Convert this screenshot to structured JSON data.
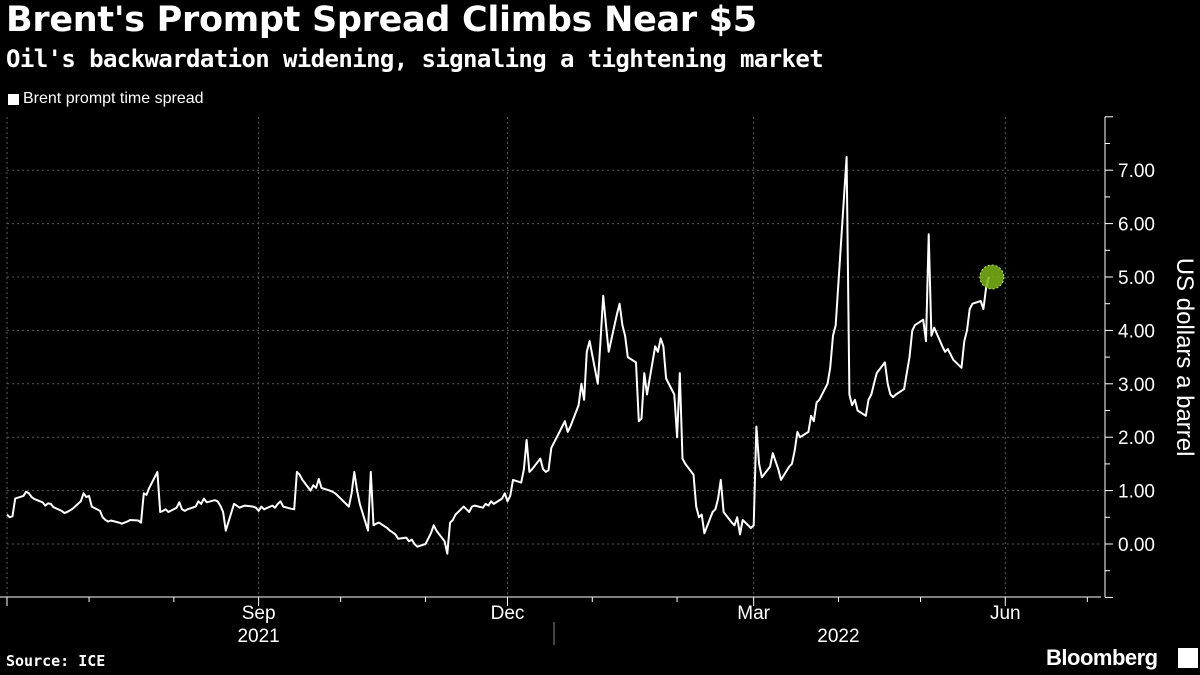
{
  "title": "Brent's Prompt Spread Climbs Near $5",
  "subtitle": "Oil's backwardation widening, signaling a tightening market",
  "source": "Source: ICE",
  "brand": "Bloomberg",
  "colors": {
    "background": "#000000",
    "line": "#ffffff",
    "grid": "#5a5a5a",
    "highlight": "#7cb518"
  },
  "chart_data": {
    "type": "line",
    "legend": [
      "Brent prompt time spread"
    ],
    "legend_position": "top-left",
    "ylabel": "US dollars a barrel",
    "ylim": [
      -1.0,
      8.0
    ],
    "y_ticks": [
      0,
      1,
      2,
      3,
      4,
      5,
      6,
      7
    ],
    "y_tick_labels": [
      "0.00",
      "1.00",
      "2.00",
      "3.00",
      "4.00",
      "5.00",
      "6.00",
      "7.00"
    ],
    "xlim": [
      "2021-06-15",
      "2022-07-20"
    ],
    "x_month_labels": [
      {
        "date": "2021-09-15",
        "label": "Sep"
      },
      {
        "date": "2021-12-15",
        "label": "Dec"
      },
      {
        "date": "2022-03-15",
        "label": "Mar"
      },
      {
        "date": "2022-06-15",
        "label": "Jun"
      }
    ],
    "x_year_labels": [
      {
        "date": "2021-09-15",
        "label": "2021"
      },
      {
        "date": "2022-04-15",
        "label": "2022"
      }
    ],
    "x_minor_ticks": [
      "2021-07-15",
      "2021-08-15",
      "2021-10-15",
      "2021-11-15",
      "2022-01-15",
      "2022-02-15",
      "2022-04-15",
      "2022-05-15",
      "2022-07-15"
    ],
    "x_grid_dates": [
      "2021-06-15",
      "2021-09-15",
      "2021-12-15",
      "2022-03-15",
      "2022-06-15"
    ],
    "grid": true,
    "series": [
      {
        "name": "Brent prompt time spread",
        "points": [
          [
            "2021-06-15",
            0.55
          ],
          [
            "2021-06-16",
            0.5
          ],
          [
            "2021-06-17",
            0.52
          ],
          [
            "2021-06-18",
            0.85
          ],
          [
            "2021-06-21",
            0.9
          ],
          [
            "2021-06-22",
            0.98
          ],
          [
            "2021-06-23",
            0.95
          ],
          [
            "2021-06-24",
            0.88
          ],
          [
            "2021-06-25",
            0.84
          ],
          [
            "2021-06-28",
            0.78
          ],
          [
            "2021-06-29",
            0.72
          ],
          [
            "2021-06-30",
            0.76
          ],
          [
            "2021-07-01",
            0.75
          ],
          [
            "2021-07-02",
            0.69
          ],
          [
            "2021-07-05",
            0.62
          ],
          [
            "2021-07-06",
            0.58
          ],
          [
            "2021-07-07",
            0.6
          ],
          [
            "2021-07-08",
            0.63
          ],
          [
            "2021-07-09",
            0.66
          ],
          [
            "2021-07-12",
            0.8
          ],
          [
            "2021-07-13",
            0.95
          ],
          [
            "2021-07-14",
            0.88
          ],
          [
            "2021-07-15",
            0.9
          ],
          [
            "2021-07-16",
            0.7
          ],
          [
            "2021-07-19",
            0.62
          ],
          [
            "2021-07-20",
            0.5
          ],
          [
            "2021-07-21",
            0.45
          ],
          [
            "2021-07-22",
            0.42
          ],
          [
            "2021-07-23",
            0.44
          ],
          [
            "2021-07-26",
            0.4
          ],
          [
            "2021-07-27",
            0.38
          ],
          [
            "2021-07-28",
            0.4
          ],
          [
            "2021-07-29",
            0.42
          ],
          [
            "2021-07-30",
            0.45
          ],
          [
            "2021-08-02",
            0.44
          ],
          [
            "2021-08-03",
            0.4
          ],
          [
            "2021-08-04",
            0.95
          ],
          [
            "2021-08-05",
            0.92
          ],
          [
            "2021-08-06",
            1.05
          ],
          [
            "2021-08-09",
            1.35
          ],
          [
            "2021-08-10",
            0.6
          ],
          [
            "2021-08-11",
            0.62
          ],
          [
            "2021-08-12",
            0.65
          ],
          [
            "2021-08-13",
            0.6
          ],
          [
            "2021-08-16",
            0.68
          ],
          [
            "2021-08-17",
            0.78
          ],
          [
            "2021-08-18",
            0.65
          ],
          [
            "2021-08-19",
            0.62
          ],
          [
            "2021-08-20",
            0.65
          ],
          [
            "2021-08-23",
            0.7
          ],
          [
            "2021-08-24",
            0.8
          ],
          [
            "2021-08-25",
            0.75
          ],
          [
            "2021-08-26",
            0.85
          ],
          [
            "2021-08-27",
            0.78
          ],
          [
            "2021-08-30",
            0.82
          ],
          [
            "2021-08-31",
            0.8
          ],
          [
            "2021-09-01",
            0.72
          ],
          [
            "2021-09-02",
            0.6
          ],
          [
            "2021-09-03",
            0.25
          ],
          [
            "2021-09-06",
            0.75
          ],
          [
            "2021-09-07",
            0.72
          ],
          [
            "2021-09-08",
            0.68
          ],
          [
            "2021-09-09",
            0.7
          ],
          [
            "2021-09-10",
            0.72
          ],
          [
            "2021-09-13",
            0.7
          ],
          [
            "2021-09-14",
            0.68
          ],
          [
            "2021-09-15",
            0.62
          ],
          [
            "2021-09-16",
            0.7
          ],
          [
            "2021-09-17",
            0.65
          ],
          [
            "2021-09-20",
            0.72
          ],
          [
            "2021-09-21",
            0.68
          ],
          [
            "2021-09-22",
            0.75
          ],
          [
            "2021-09-23",
            0.8
          ],
          [
            "2021-09-24",
            0.7
          ],
          [
            "2021-09-27",
            0.66
          ],
          [
            "2021-09-28",
            0.65
          ],
          [
            "2021-09-29",
            1.35
          ],
          [
            "2021-09-30",
            1.3
          ],
          [
            "2021-10-01",
            1.2
          ],
          [
            "2021-10-04",
            1.0
          ],
          [
            "2021-10-05",
            1.1
          ],
          [
            "2021-10-06",
            1.05
          ],
          [
            "2021-10-07",
            1.22
          ],
          [
            "2021-10-08",
            1.05
          ],
          [
            "2021-10-11",
            1.0
          ],
          [
            "2021-10-12",
            0.98
          ],
          [
            "2021-10-13",
            0.95
          ],
          [
            "2021-10-14",
            0.9
          ],
          [
            "2021-10-15",
            0.85
          ],
          [
            "2021-10-18",
            0.7
          ],
          [
            "2021-10-19",
            0.95
          ],
          [
            "2021-10-20",
            1.35
          ],
          [
            "2021-10-21",
            1.0
          ],
          [
            "2021-10-22",
            0.75
          ],
          [
            "2021-10-25",
            0.25
          ],
          [
            "2021-10-26",
            1.35
          ],
          [
            "2021-10-27",
            0.35
          ],
          [
            "2021-10-28",
            0.38
          ],
          [
            "2021-10-29",
            0.4
          ],
          [
            "2021-11-01",
            0.3
          ],
          [
            "2021-11-02",
            0.25
          ],
          [
            "2021-11-03",
            0.22
          ],
          [
            "2021-11-04",
            0.18
          ],
          [
            "2021-11-05",
            0.1
          ],
          [
            "2021-11-08",
            0.12
          ],
          [
            "2021-11-09",
            0.05
          ],
          [
            "2021-11-10",
            0.08
          ],
          [
            "2021-11-11",
            0.0
          ],
          [
            "2021-11-12",
            -0.05
          ],
          [
            "2021-11-15",
            0.0
          ],
          [
            "2021-11-16",
            0.1
          ],
          [
            "2021-11-17",
            0.2
          ],
          [
            "2021-11-18",
            0.35
          ],
          [
            "2021-11-19",
            0.25
          ],
          [
            "2021-11-22",
            0.05
          ],
          [
            "2021-11-23",
            -0.18
          ],
          [
            "2021-11-24",
            0.4
          ],
          [
            "2021-11-25",
            0.45
          ],
          [
            "2021-11-26",
            0.55
          ],
          [
            "2021-11-29",
            0.7
          ],
          [
            "2021-11-30",
            0.65
          ],
          [
            "2021-12-01",
            0.6
          ],
          [
            "2021-12-02",
            0.7
          ],
          [
            "2021-12-03",
            0.72
          ],
          [
            "2021-12-06",
            0.68
          ],
          [
            "2021-12-07",
            0.75
          ],
          [
            "2021-12-08",
            0.72
          ],
          [
            "2021-12-09",
            0.8
          ],
          [
            "2021-12-10",
            0.75
          ],
          [
            "2021-12-13",
            0.85
          ],
          [
            "2021-12-14",
            0.95
          ],
          [
            "2021-12-15",
            0.8
          ],
          [
            "2021-12-16",
            0.9
          ],
          [
            "2021-12-17",
            1.2
          ],
          [
            "2021-12-20",
            1.15
          ],
          [
            "2021-12-21",
            1.4
          ],
          [
            "2021-12-22",
            1.95
          ],
          [
            "2021-12-23",
            1.35
          ],
          [
            "2021-12-24",
            1.4
          ],
          [
            "2021-12-27",
            1.6
          ],
          [
            "2021-12-28",
            1.4
          ],
          [
            "2021-12-29",
            1.35
          ],
          [
            "2021-12-30",
            1.38
          ],
          [
            "2021-12-31",
            1.8
          ],
          [
            "2022-01-03",
            2.1
          ],
          [
            "2022-01-04",
            2.2
          ],
          [
            "2022-01-05",
            2.3
          ],
          [
            "2022-01-06",
            2.1
          ],
          [
            "2022-01-07",
            2.2
          ],
          [
            "2022-01-10",
            2.6
          ],
          [
            "2022-01-11",
            3.0
          ],
          [
            "2022-01-12",
            2.7
          ],
          [
            "2022-01-13",
            3.6
          ],
          [
            "2022-01-14",
            3.8
          ],
          [
            "2022-01-17",
            3.0
          ],
          [
            "2022-01-18",
            3.8
          ],
          [
            "2022-01-19",
            4.65
          ],
          [
            "2022-01-20",
            4.1
          ],
          [
            "2022-01-21",
            3.6
          ],
          [
            "2022-01-24",
            4.3
          ],
          [
            "2022-01-25",
            4.5
          ],
          [
            "2022-01-26",
            4.1
          ],
          [
            "2022-01-27",
            3.9
          ],
          [
            "2022-01-28",
            3.5
          ],
          [
            "2022-01-31",
            3.4
          ],
          [
            "2022-02-01",
            2.3
          ],
          [
            "2022-02-02",
            2.35
          ],
          [
            "2022-02-03",
            3.2
          ],
          [
            "2022-02-04",
            2.8
          ],
          [
            "2022-02-07",
            3.7
          ],
          [
            "2022-02-08",
            3.6
          ],
          [
            "2022-02-09",
            3.85
          ],
          [
            "2022-02-10",
            3.7
          ],
          [
            "2022-02-11",
            3.1
          ],
          [
            "2022-02-14",
            2.8
          ],
          [
            "2022-02-15",
            2.0
          ],
          [
            "2022-02-16",
            3.2
          ],
          [
            "2022-02-17",
            1.6
          ],
          [
            "2022-02-18",
            1.5
          ],
          [
            "2022-02-21",
            1.3
          ],
          [
            "2022-02-22",
            0.7
          ],
          [
            "2022-02-23",
            0.5
          ],
          [
            "2022-02-24",
            0.55
          ],
          [
            "2022-02-25",
            0.2
          ],
          [
            "2022-02-28",
            0.6
          ],
          [
            "2022-03-01",
            0.65
          ],
          [
            "2022-03-02",
            0.85
          ],
          [
            "2022-03-03",
            1.2
          ],
          [
            "2022-03-04",
            0.6
          ],
          [
            "2022-03-07",
            0.4
          ],
          [
            "2022-03-08",
            0.35
          ],
          [
            "2022-03-09",
            0.5
          ],
          [
            "2022-03-10",
            0.18
          ],
          [
            "2022-03-11",
            0.45
          ],
          [
            "2022-03-14",
            0.3
          ],
          [
            "2022-03-15",
            0.35
          ],
          [
            "2022-03-16",
            2.2
          ],
          [
            "2022-03-17",
            1.5
          ],
          [
            "2022-03-18",
            1.25
          ],
          [
            "2022-03-21",
            1.45
          ],
          [
            "2022-03-22",
            1.7
          ],
          [
            "2022-03-23",
            1.55
          ],
          [
            "2022-03-24",
            1.4
          ],
          [
            "2022-03-25",
            1.2
          ],
          [
            "2022-03-28",
            1.45
          ],
          [
            "2022-03-29",
            1.5
          ],
          [
            "2022-03-30",
            1.75
          ],
          [
            "2022-03-31",
            2.1
          ],
          [
            "2022-04-01",
            2.0
          ],
          [
            "2022-04-04",
            2.1
          ],
          [
            "2022-04-05",
            2.4
          ],
          [
            "2022-04-06",
            2.3
          ],
          [
            "2022-04-07",
            2.65
          ],
          [
            "2022-04-08",
            2.7
          ],
          [
            "2022-04-11",
            3.0
          ],
          [
            "2022-04-12",
            3.3
          ],
          [
            "2022-04-13",
            3.9
          ],
          [
            "2022-04-14",
            4.1
          ],
          [
            "2022-04-18",
            7.25
          ],
          [
            "2022-04-19",
            2.8
          ],
          [
            "2022-04-20",
            2.6
          ],
          [
            "2022-04-21",
            2.7
          ],
          [
            "2022-04-22",
            2.5
          ],
          [
            "2022-04-25",
            2.4
          ],
          [
            "2022-04-26",
            2.7
          ],
          [
            "2022-04-27",
            2.8
          ],
          [
            "2022-04-28",
            3.0
          ],
          [
            "2022-04-29",
            3.2
          ],
          [
            "2022-05-02",
            3.4
          ],
          [
            "2022-05-03",
            3.0
          ],
          [
            "2022-05-04",
            2.8
          ],
          [
            "2022-05-05",
            2.75
          ],
          [
            "2022-05-06",
            2.8
          ],
          [
            "2022-05-09",
            2.9
          ],
          [
            "2022-05-10",
            3.2
          ],
          [
            "2022-05-11",
            3.5
          ],
          [
            "2022-05-12",
            4.0
          ],
          [
            "2022-05-13",
            4.1
          ],
          [
            "2022-05-16",
            4.2
          ],
          [
            "2022-05-17",
            3.8
          ],
          [
            "2022-05-18",
            5.8
          ],
          [
            "2022-05-19",
            3.9
          ],
          [
            "2022-05-20",
            4.05
          ],
          [
            "2022-05-23",
            3.7
          ],
          [
            "2022-05-24",
            3.6
          ],
          [
            "2022-05-25",
            3.65
          ],
          [
            "2022-05-26",
            3.55
          ],
          [
            "2022-05-27",
            3.45
          ],
          [
            "2022-05-30",
            3.3
          ],
          [
            "2022-05-31",
            3.8
          ],
          [
            "2022-06-01",
            4.0
          ],
          [
            "2022-06-02",
            4.4
          ],
          [
            "2022-06-03",
            4.5
          ],
          [
            "2022-06-06",
            4.55
          ],
          [
            "2022-06-07",
            4.4
          ],
          [
            "2022-06-08",
            4.8
          ],
          [
            "2022-06-09",
            5.0
          ]
        ]
      }
    ],
    "highlight_point": [
      "2022-06-09",
      5.0
    ]
  }
}
